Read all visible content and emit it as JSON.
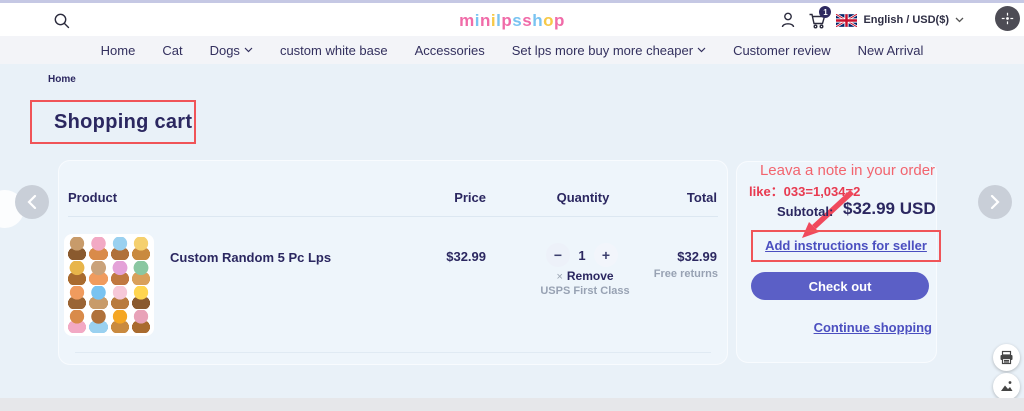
{
  "header": {
    "logo_letters": [
      {
        "ch": "m",
        "color": "#f06ba8"
      },
      {
        "ch": "i",
        "color": "#79c3f1"
      },
      {
        "ch": "n",
        "color": "#f06ba8"
      },
      {
        "ch": "i",
        "color": "#f7c948"
      },
      {
        "ch": "l",
        "color": "#79c3f1"
      },
      {
        "ch": "p",
        "color": "#f06ba8"
      },
      {
        "ch": "s",
        "color": "#79c3f1"
      },
      {
        "ch": "s",
        "color": "#f06ba8"
      },
      {
        "ch": "h",
        "color": "#79c3f1"
      },
      {
        "ch": "o",
        "color": "#f7c948"
      },
      {
        "ch": "p",
        "color": "#f06ba8"
      }
    ],
    "cart_badge": "1",
    "language_currency": "English / USD($)",
    "icons": [
      "search-icon",
      "account-icon",
      "cart-icon",
      "uk-flag-icon",
      "chevron-down-icon",
      "avatar-icon"
    ]
  },
  "nav": {
    "items": [
      {
        "label": "Home"
      },
      {
        "label": "Cat"
      },
      {
        "label": "Dogs",
        "dropdown": true
      },
      {
        "label": "custom white base"
      },
      {
        "label": "Accessories"
      },
      {
        "label": "Set lps more buy more cheaper",
        "dropdown": true
      },
      {
        "label": "Customer review"
      },
      {
        "label": "New Arrival"
      }
    ]
  },
  "breadcrumb": {
    "home": "Home"
  },
  "page_title": "Shopping cart",
  "cart": {
    "columns": {
      "product": "Product",
      "price": "Price",
      "quantity": "Quantity",
      "total": "Total"
    },
    "item": {
      "name": "Custom Random 5 Pc Lps",
      "price": "$32.99",
      "qty_minus": "−",
      "quantity": "1",
      "qty_plus": "+",
      "remove_x": "×",
      "remove_label": "Remove",
      "shipping": "USPS First Class",
      "total": "$32.99",
      "returns_note": "Free returns"
    }
  },
  "summary": {
    "annotation_line1": "Leava a note in your order",
    "annotation_line2": "like：033=1,034=2",
    "subtotal_label": "Subtotal:",
    "subtotal_value": "$32.99 USD",
    "instructions_link": "Add instructions for seller",
    "checkout_label": "Check out",
    "continue_label": "Continue shopping"
  },
  "colors": {
    "accent_red": "#f05458",
    "annotation_red": "#e83a50",
    "button_purple": "#5b5fc6",
    "navy_text": "#2b2760",
    "link_indigo": "#4b4fc0",
    "brand_pink": "#f06ba8",
    "brand_blue": "#79c3f1",
    "brand_yellow": "#f7c948",
    "page_bg": "#e9f1f8"
  }
}
